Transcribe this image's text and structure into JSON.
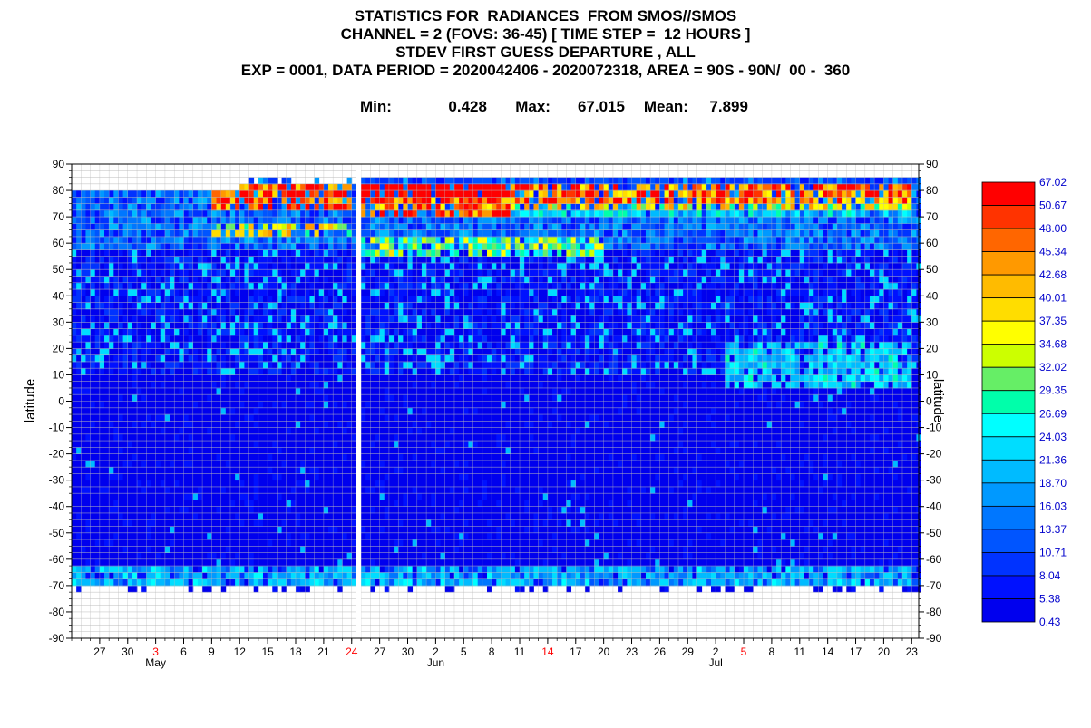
{
  "header": {
    "title": "STATISTICS FOR  RADIANCES  FROM SMOS//SMOS",
    "channel": "CHANNEL = 2 (FOVS: 36-45) [ TIME STEP =  12 HOURS ]",
    "statistic": "STDEV FIRST GUESS DEPARTURE , ALL",
    "experiment": "EXP = 0001, DATA PERIOD = 2020042406 - 2020072318, AREA = 90S - 90N/  00 -  360",
    "min_label": "Min:",
    "min_value": "0.428",
    "max_label": "Max:",
    "max_value": "67.015",
    "mean_label": "Mean:",
    "mean_value": "7.899"
  },
  "chart_data": {
    "type": "heatmap",
    "ylabel_left": "latitude",
    "ylabel_right": "latitude",
    "ylim": [
      -90,
      90
    ],
    "yticks": [
      90,
      80,
      70,
      60,
      50,
      40,
      30,
      20,
      10,
      0,
      -10,
      -20,
      -30,
      -40,
      -50,
      -60,
      -70,
      -80,
      -90
    ],
    "ytick_labels": [
      "90",
      "80",
      "70",
      "60",
      "50",
      "40",
      "30",
      "20",
      "10",
      "0",
      "-10",
      "-20",
      "-30",
      "-40",
      "-50",
      "-60",
      "-70",
      "-80",
      "-90"
    ],
    "x_range": [
      "2020-04-24",
      "2020-07-23"
    ],
    "xtick_labels": [
      {
        "label": "27",
        "date": "2020-04-27",
        "weekend": false
      },
      {
        "label": "30",
        "date": "2020-04-30",
        "weekend": false
      },
      {
        "label": "3",
        "date": "2020-05-03",
        "weekend": true
      },
      {
        "label": "6",
        "date": "2020-05-06",
        "weekend": false
      },
      {
        "label": "9",
        "date": "2020-05-09",
        "weekend": false
      },
      {
        "label": "12",
        "date": "2020-05-12",
        "weekend": false
      },
      {
        "label": "15",
        "date": "2020-05-15",
        "weekend": false
      },
      {
        "label": "18",
        "date": "2020-05-18",
        "weekend": false
      },
      {
        "label": "21",
        "date": "2020-05-21",
        "weekend": false
      },
      {
        "label": "24",
        "date": "2020-05-24",
        "weekend": true
      },
      {
        "label": "27",
        "date": "2020-05-27",
        "weekend": false
      },
      {
        "label": "30",
        "date": "2020-05-30",
        "weekend": false
      },
      {
        "label": "2",
        "date": "2020-06-02",
        "weekend": false
      },
      {
        "label": "5",
        "date": "2020-06-05",
        "weekend": false
      },
      {
        "label": "8",
        "date": "2020-06-08",
        "weekend": false
      },
      {
        "label": "11",
        "date": "2020-06-11",
        "weekend": false
      },
      {
        "label": "14",
        "date": "2020-06-14",
        "weekend": true
      },
      {
        "label": "17",
        "date": "2020-06-17",
        "weekend": false
      },
      {
        "label": "20",
        "date": "2020-06-20",
        "weekend": false
      },
      {
        "label": "23",
        "date": "2020-06-23",
        "weekend": false
      },
      {
        "label": "26",
        "date": "2020-06-26",
        "weekend": false
      },
      {
        "label": "29",
        "date": "2020-06-29",
        "weekend": false
      },
      {
        "label": "2",
        "date": "2020-07-02",
        "weekend": false
      },
      {
        "label": "5",
        "date": "2020-07-05",
        "weekend": true
      },
      {
        "label": "8",
        "date": "2020-07-08",
        "weekend": false
      },
      {
        "label": "11",
        "date": "2020-07-11",
        "weekend": false
      },
      {
        "label": "14",
        "date": "2020-07-14",
        "weekend": false
      },
      {
        "label": "17",
        "date": "2020-07-17",
        "weekend": false
      },
      {
        "label": "20",
        "date": "2020-07-20",
        "weekend": false
      },
      {
        "label": "23",
        "date": "2020-07-23",
        "weekend": false
      }
    ],
    "month_labels": [
      {
        "label": "May",
        "date": "2020-05-03"
      },
      {
        "label": "Jun",
        "date": "2020-06-02"
      },
      {
        "label": "Jul",
        "date": "2020-07-02"
      }
    ],
    "time_step_hours": 12,
    "lat_bin_deg": 2.5,
    "data_gap": {
      "start": "2020-05-24T12:00",
      "end": "2020-05-25T00:00"
    },
    "colorbar": {
      "levels": [
        "67.02",
        "50.67",
        "48.00",
        "45.34",
        "42.68",
        "40.01",
        "37.35",
        "34.68",
        "32.02",
        "29.35",
        "26.69",
        "24.03",
        "21.36",
        "18.70",
        "16.03",
        "13.37",
        "10.71",
        "8.04",
        "5.38",
        "0.43"
      ],
      "colors": [
        "#ff0000",
        "#ff3300",
        "#ff6600",
        "#ff9900",
        "#ffbb00",
        "#ffdd00",
        "#ffff00",
        "#ccff00",
        "#66ee66",
        "#00ffaa",
        "#00ffff",
        "#00ddff",
        "#00bbff",
        "#0099ff",
        "#0077ff",
        "#0055ff",
        "#0033ff",
        "#0011ff",
        "#0000ee"
      ],
      "label_color": "#0000cc"
    },
    "zones": [
      {
        "lat": [
          80,
          85
        ],
        "start": "2020-05-25",
        "end": "2020-07-23",
        "value": 10
      },
      {
        "lat": [
          75,
          82.5
        ],
        "start": "2020-05-25",
        "end": "2020-06-10",
        "value": 66
      },
      {
        "lat": [
          70,
          77.5
        ],
        "start": "2020-05-25",
        "end": "2020-06-10",
        "value": 49
      },
      {
        "lat": [
          75,
          82.5
        ],
        "start": "2020-06-10",
        "end": "2020-07-23",
        "value": 47
      },
      {
        "lat": [
          72.5,
          75
        ],
        "start": "2020-06-10",
        "end": "2020-07-23",
        "value": 36
      },
      {
        "lat": [
          70,
          72.5
        ],
        "start": "2020-06-10",
        "end": "2020-07-23",
        "value": 23
      },
      {
        "lat": [
          72.5,
          82.5
        ],
        "start": "2020-05-09",
        "end": "2020-05-24",
        "value": 50
      },
      {
        "lat": [
          62.5,
          67.5
        ],
        "start": "2020-05-09",
        "end": "2020-05-24",
        "value": 36
      },
      {
        "lat": [
          55,
          62.5
        ],
        "start": "2020-05-25",
        "end": "2020-06-20",
        "value": 30
      },
      {
        "lat": [
          5,
          22.5
        ],
        "start": "2020-07-03",
        "end": "2020-07-23",
        "value": 22
      },
      {
        "lat": [
          -70,
          -62.5
        ],
        "start": "2020-04-24",
        "end": "2020-07-23",
        "value": 20
      }
    ]
  }
}
